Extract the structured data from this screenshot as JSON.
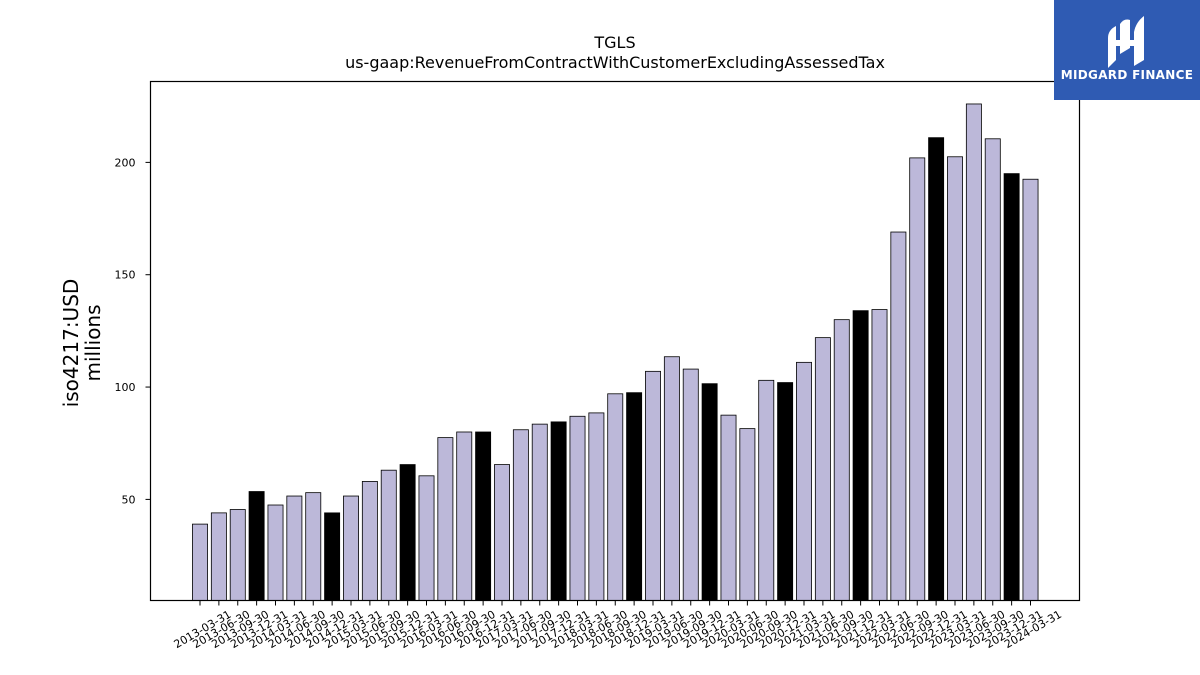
{
  "chart_data": {
    "type": "bar",
    "title": "TGLS",
    "subtitle": "us-gaap:RevenueFromContractWithCustomerExcludingAssessedTax",
    "ylabel": "iso4217:USD",
    "ylabel2": "millions",
    "xlabel": "",
    "ylim": [
      5,
      236
    ],
    "yticks": [
      50,
      100,
      150,
      200
    ],
    "grid": false,
    "colors": {
      "normal": "#bcb8d9",
      "highlight": "#000000",
      "edge": "#000000"
    },
    "categories": [
      "2013-03-31",
      "2013-06-30",
      "2013-09-30",
      "2013-12-31",
      "2014-03-31",
      "2014-06-30",
      "2014-09-30",
      "2014-12-31",
      "2015-03-31",
      "2015-06-30",
      "2015-09-30",
      "2015-12-31",
      "2016-03-31",
      "2016-06-30",
      "2016-09-30",
      "2016-12-31",
      "2017-03-31",
      "2017-06-30",
      "2017-09-30",
      "2017-12-31",
      "2018-03-31",
      "2018-06-30",
      "2018-09-30",
      "2018-12-31",
      "2019-03-31",
      "2019-06-30",
      "2019-09-30",
      "2019-12-31",
      "2020-03-31",
      "2020-06-30",
      "2020-09-30",
      "2020-12-31",
      "2021-03-31",
      "2021-06-30",
      "2021-09-30",
      "2021-12-31",
      "2022-03-31",
      "2022-06-30",
      "2022-09-30",
      "2022-12-31",
      "2023-03-31",
      "2023-06-30",
      "2023-09-30",
      "2023-12-31",
      "2024-03-31"
    ],
    "values": [
      39,
      44,
      45.5,
      53.5,
      47.5,
      51.5,
      53,
      44,
      51.5,
      58,
      63,
      65.5,
      60.5,
      77.5,
      80,
      80,
      65.5,
      81,
      83.5,
      84.5,
      87,
      88.5,
      97,
      97.5,
      107,
      113.5,
      108,
      101.5,
      87.5,
      81.5,
      103,
      102,
      111,
      122,
      130,
      134,
      134.5,
      169,
      202,
      211,
      202.5,
      226,
      210.5,
      195,
      192.5
    ],
    "highlighted": [
      false,
      false,
      false,
      true,
      false,
      false,
      false,
      true,
      false,
      false,
      false,
      true,
      false,
      false,
      false,
      true,
      false,
      false,
      false,
      true,
      false,
      false,
      false,
      true,
      false,
      false,
      false,
      true,
      false,
      false,
      false,
      true,
      false,
      false,
      false,
      true,
      false,
      false,
      false,
      true,
      false,
      false,
      false,
      true,
      false
    ]
  },
  "logo": {
    "text": "MIDGARD FINANCE",
    "background": "#2f5bb3",
    "icon": "midgard-logo-icon"
  }
}
